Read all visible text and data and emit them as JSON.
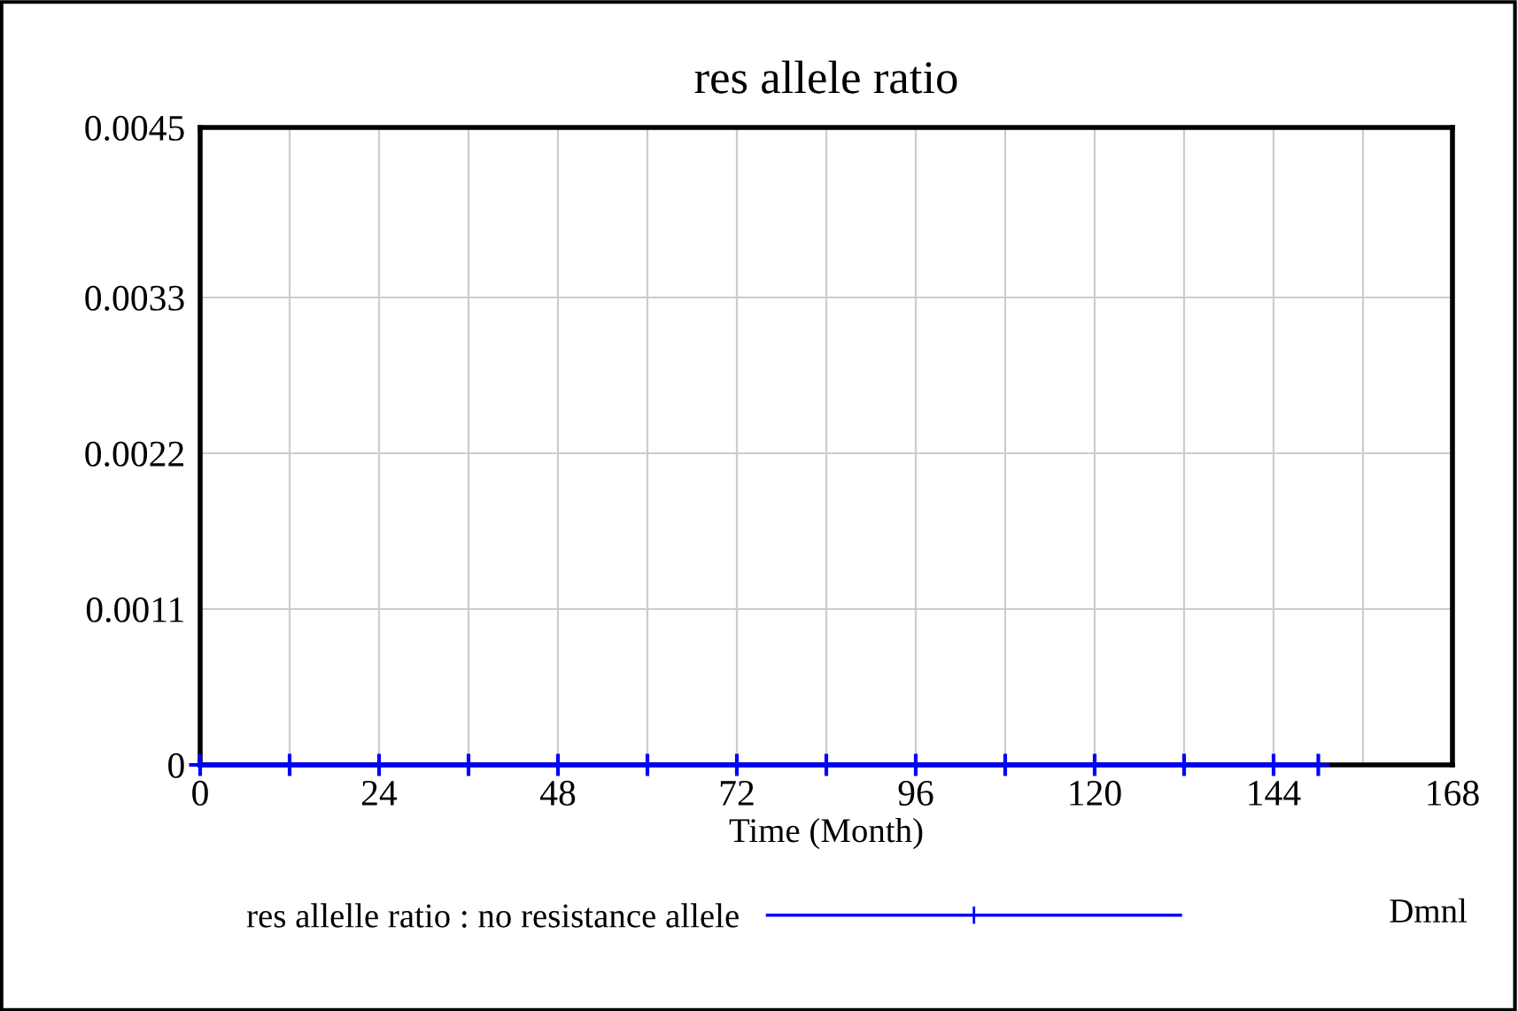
{
  "chart_data": {
    "type": "line",
    "title": "res allele ratio",
    "xlabel": "Time (Month)",
    "x": [
      0,
      12,
      24,
      36,
      48,
      60,
      72,
      84,
      96,
      108,
      120,
      132,
      144,
      150
    ],
    "series": [
      {
        "name": "res allelle ratio : no resistance allele",
        "color": "#0000ff",
        "values": [
          0,
          0,
          0,
          0,
          0,
          0,
          0,
          0,
          0,
          0,
          0,
          0,
          0,
          0
        ]
      }
    ],
    "xlim": [
      0,
      168
    ],
    "xticks": [
      0,
      24,
      48,
      72,
      96,
      120,
      144,
      168
    ],
    "ylim": [
      0,
      0.0045
    ],
    "yticks": [
      0,
      0.0011,
      0.0022,
      0.0033,
      0.0045
    ],
    "grid": true,
    "legend": "bottom",
    "marker": "cross",
    "line_style": "solid",
    "annotations": [
      "Dmnl"
    ]
  }
}
